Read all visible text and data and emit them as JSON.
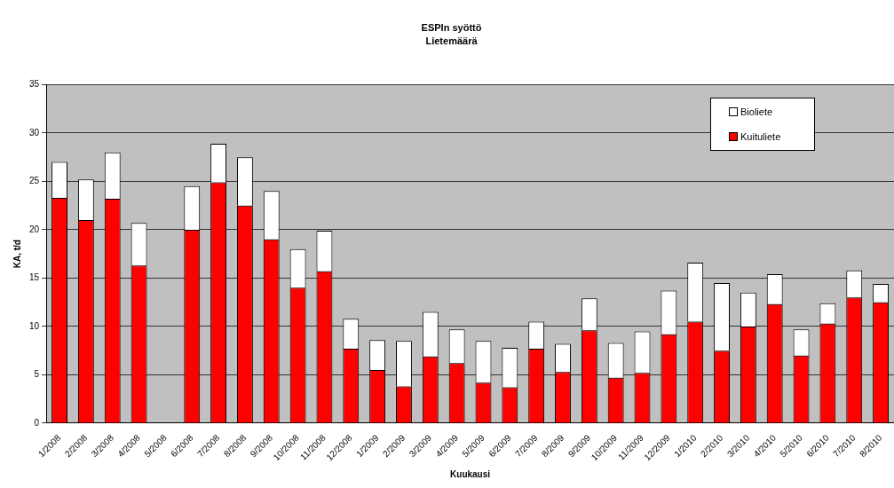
{
  "chart_data": {
    "type": "bar",
    "title": "ESPIn syöttö",
    "subtitle": "Lietemäärä",
    "xlabel": "Kuukausi",
    "ylabel": "KA, t/d",
    "categories": [
      "1/2008",
      "2/2008",
      "3/2008",
      "4/2008",
      "5/2008",
      "6/2008",
      "7/2008",
      "8/2008",
      "9/2008",
      "10/2008",
      "11/2008",
      "12/2008",
      "1/2009",
      "2/2009",
      "3/2009",
      "4/2009",
      "5/2009",
      "6/2009",
      "7/2009",
      "8/2009",
      "9/2009",
      "10/2009",
      "11/2009",
      "12/2009",
      "1/2010",
      "2/2010",
      "3/2010",
      "4/2010",
      "5/2010",
      "6/2010",
      "7/2010",
      "8/2010"
    ],
    "series": [
      {
        "name": "Kuituliete",
        "color": "#ff0000",
        "values": [
          23.3,
          21.0,
          23.2,
          16.3,
          null,
          20.0,
          24.9,
          22.5,
          19.0,
          14.0,
          15.7,
          7.7,
          5.5,
          3.8,
          6.9,
          6.2,
          4.2,
          3.7,
          7.7,
          5.3,
          9.6,
          4.7,
          5.2,
          9.2,
          10.5,
          7.5,
          10.0,
          12.3,
          7.0,
          10.3,
          13.0,
          12.5
        ]
      },
      {
        "name": "Bioliete",
        "color": "#ffffff",
        "values": [
          3.7,
          4.2,
          4.8,
          4.4,
          null,
          4.5,
          4.0,
          5.0,
          5.0,
          4.0,
          4.2,
          3.1,
          3.1,
          4.7,
          4.6,
          3.5,
          4.3,
          4.1,
          2.8,
          2.9,
          3.3,
          3.6,
          4.3,
          4.5,
          6.1,
          7.0,
          3.5,
          3.1,
          2.7,
          2.1,
          2.8,
          1.9
        ]
      }
    ],
    "stacked": true,
    "ylim": [
      0,
      35
    ],
    "yticks": [
      0,
      5,
      10,
      15,
      20,
      25,
      30,
      35
    ],
    "grid": "y",
    "legend": "top right"
  }
}
